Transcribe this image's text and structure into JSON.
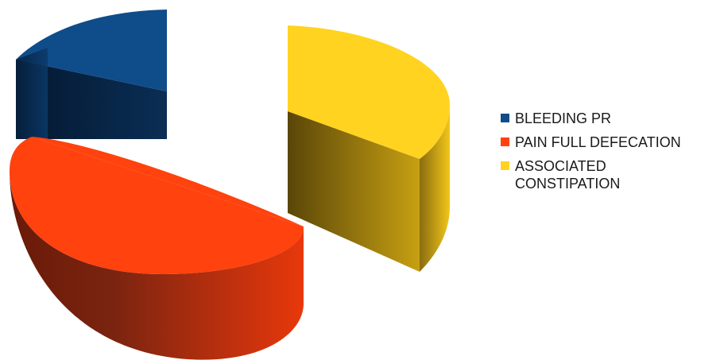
{
  "chart_data": {
    "type": "pie",
    "style": "3d-exploded",
    "categories": [
      "BLEEDING PR",
      "PAIN FULL DEFECATION",
      "ASSOCIATED CONSTIPATION"
    ],
    "values": [
      20,
      46,
      34
    ],
    "colors": [
      "#0f4c8a",
      "#ff420e",
      "#ffd320"
    ],
    "legend_position": "right"
  },
  "legend": {
    "items": [
      {
        "label": "BLEEDING PR",
        "color": "#0f4c8a"
      },
      {
        "label": "PAIN FULL DEFECATION",
        "color": "#ff420e"
      },
      {
        "label": "ASSOCIATED CONSTIPATION",
        "color": "#ffd320"
      }
    ]
  }
}
